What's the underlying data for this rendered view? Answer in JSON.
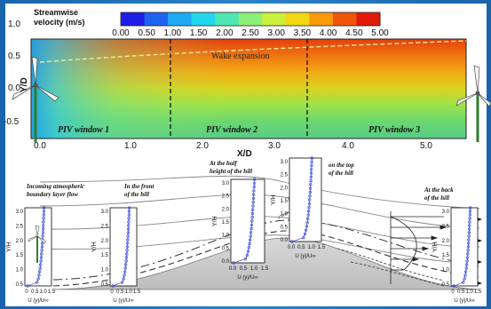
{
  "top_panel": {
    "colorbar": {
      "title_line1": "Streamwise",
      "title_line2": "velocity (m/s)",
      "ticks": [
        "0.00",
        "0.50",
        "1.00",
        "1.50",
        "2.00",
        "2.50",
        "3.00",
        "3.50",
        "4.00",
        "4.50",
        "5.00"
      ],
      "colors": [
        "#1e1ee6",
        "#1e62f0",
        "#1eaaf4",
        "#22d6ee",
        "#4ee6b4",
        "#8af078",
        "#c8f03c",
        "#f0d814",
        "#f89a0a",
        "#f0560a",
        "#e01a0a"
      ]
    },
    "y_axis": {
      "label": "Y/D",
      "ticks": [
        "1.0",
        "0.5",
        "0.0",
        "-0.5"
      ]
    },
    "x_axis": {
      "label": "X/D",
      "ticks": [
        "0.0",
        "1.0",
        "2.0",
        "3.0",
        "4.0",
        "5.0"
      ]
    },
    "wake_label": "Wake expansion",
    "piv_windows": [
      "PIV window 1",
      "PIV window 2",
      "PIV window 3"
    ]
  },
  "bottom_panel": {
    "profiles": [
      {
        "caption_line1": "Incoming atmospheric",
        "caption_line2": "boundary layer flow",
        "ylabel": "Y/H",
        "xlabel": "U (y)/U∞",
        "yticks": [
          "3.0",
          "2.5",
          "2.0",
          "1.5",
          "1.0",
          "0.5"
        ],
        "xticks": [
          "0",
          "0.5",
          "1.0",
          "1.5"
        ]
      },
      {
        "caption_line1": "In the front",
        "caption_line2": "of the hill",
        "ylabel": "Y/H",
        "xlabel": "U (y)/U∞",
        "yticks": [
          "3.0",
          "2.5",
          "2.0",
          "1.5",
          "1.0",
          "0.5"
        ],
        "xticks": [
          "0",
          "0.5",
          "1.0",
          "1.5"
        ]
      },
      {
        "caption_line1": "At the half",
        "caption_line2": "height of the hill",
        "ylabel": "Y/H",
        "xlabel": "U (y)/U∞",
        "yticks": [
          "3.0",
          "2.5",
          "2.0",
          "1.5",
          "1.0",
          "0.5",
          "0.0"
        ],
        "xticks": [
          "0.0",
          "0.5",
          "1.0",
          "1.5"
        ]
      },
      {
        "caption_line1": "on the top",
        "caption_line2": "of the hill",
        "ylabel": "Y/H",
        "xlabel": "U (y)/U∞",
        "yticks": [
          "3.0",
          "2.5",
          "2.0",
          "1.5",
          "1.0",
          "0.5",
          "0.0"
        ],
        "xticks": [
          "0.0",
          "0.5",
          "1.0",
          "1.5"
        ]
      },
      {
        "caption_line1": "At the back",
        "caption_line2": "of the hill",
        "ylabel": "Y/H",
        "xlabel": "U (y)/U∞",
        "yticks": [
          "3.0",
          "2.5",
          "2.0",
          "1.5",
          "1.0",
          "0.5"
        ],
        "xticks": [
          "0",
          "0.5",
          "1.0",
          "1.5"
        ]
      }
    ]
  }
}
